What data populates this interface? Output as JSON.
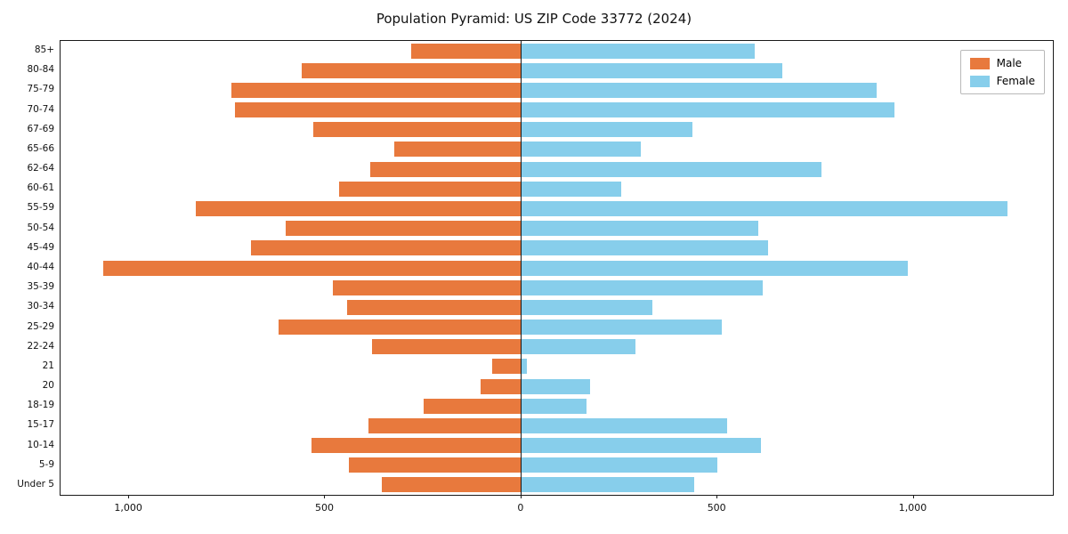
{
  "title": "Population Pyramid: US ZIP Code 33772 (2024)",
  "legend": {
    "male": "Male",
    "female": "Female"
  },
  "colors": {
    "male": "#e8793d",
    "female": "#87ceeb"
  },
  "chart_data": {
    "type": "bar",
    "subtype": "population-pyramid",
    "orientation": "horizontal",
    "title": "Population Pyramid: US ZIP Code 33772 (2024)",
    "categories_top_to_bottom": [
      "85+",
      "80-84",
      "75-79",
      "70-74",
      "67-69",
      "65-66",
      "62-64",
      "60-61",
      "55-59",
      "50-54",
      "45-49",
      "40-44",
      "35-39",
      "30-34",
      "25-29",
      "22-24",
      "21",
      "20",
      "18-19",
      "15-17",
      "10-14",
      "5-9",
      "Under 5"
    ],
    "series": [
      {
        "name": "Male",
        "side": "left",
        "color": "#e8793d",
        "values": [
          280,
          560,
          740,
          730,
          530,
          325,
          385,
          465,
          830,
          600,
          690,
          1065,
          480,
          445,
          620,
          380,
          75,
          105,
          250,
          390,
          535,
          440,
          355
        ]
      },
      {
        "name": "Female",
        "side": "right",
        "color": "#87ceeb",
        "values": [
          595,
          665,
          905,
          950,
          435,
          305,
          765,
          255,
          1240,
          605,
          630,
          985,
          615,
          335,
          510,
          290,
          15,
          175,
          165,
          525,
          610,
          500,
          440
        ]
      }
    ],
    "xticks": {
      "values": [
        -1000,
        -500,
        0,
        500,
        1000
      ],
      "labels": [
        "1,000",
        "500",
        "0",
        "500",
        "1,000"
      ]
    },
    "xlim": [
      -1175,
      1355
    ],
    "grid": false,
    "legend_position": "upper-right"
  }
}
